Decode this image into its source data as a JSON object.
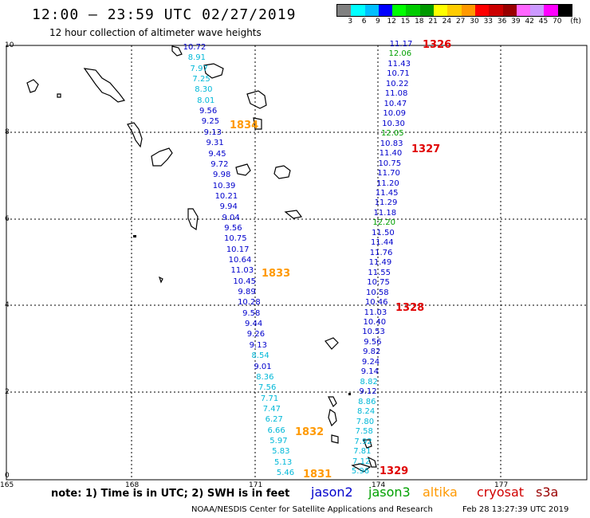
{
  "header": {
    "title": "12:00 – 23:59 UTC 02/27/2019",
    "subtitle": "12 hour collection of altimeter wave heights"
  },
  "legend_scale": {
    "colors": [
      "#808080",
      "#00ffff",
      "#00bfff",
      "#0000ff",
      "#00ff00",
      "#00cc00",
      "#009900",
      "#ffff00",
      "#ffcc00",
      "#ff9900",
      "#ff0000",
      "#cc0000",
      "#990000",
      "#ff66ff",
      "#cc99ff",
      "#ff00ff",
      "#000000"
    ],
    "labels": [
      "3",
      "6",
      "9",
      "12",
      "15",
      "18",
      "21",
      "24",
      "27",
      "30",
      "33",
      "36",
      "39",
      "42",
      "45",
      "70",
      "(ft)"
    ]
  },
  "axes": {
    "x_ticks": [
      "165",
      "168",
      "171",
      "174",
      "177"
    ],
    "y_ticks": [
      "10",
      "8",
      "6",
      "4",
      "2",
      "0"
    ]
  },
  "colors": {
    "jason2": "#0000cc",
    "jason3": "#00a000",
    "cyan": "#00b8d8",
    "time_orange": "#ff9900",
    "time_red": "#e00000",
    "altika": "#ff9900",
    "cryosat": "#d00000",
    "s3a": "#990000"
  },
  "track_a_values": [
    {
      "v": "10.72",
      "c": "jason2"
    },
    {
      "v": "8.91",
      "c": "cyan"
    },
    {
      "v": "7.97",
      "c": "cyan"
    },
    {
      "v": "7.25",
      "c": "cyan"
    },
    {
      "v": "8.30",
      "c": "cyan"
    },
    {
      "v": "8.01",
      "c": "cyan"
    },
    {
      "v": "9.56",
      "c": "jason2"
    },
    {
      "v": "9.25",
      "c": "jason2"
    },
    {
      "v": "9.13",
      "c": "jason2"
    },
    {
      "v": "9.31",
      "c": "jason2"
    },
    {
      "v": "9.45",
      "c": "jason2"
    },
    {
      "v": "9.72",
      "c": "jason2"
    },
    {
      "v": "9.98",
      "c": "jason2"
    },
    {
      "v": "10.39",
      "c": "jason2"
    },
    {
      "v": "10.21",
      "c": "jason2"
    },
    {
      "v": "9.94",
      "c": "jason2"
    },
    {
      "v": "9.04",
      "c": "jason2"
    },
    {
      "v": "9.56",
      "c": "jason2"
    },
    {
      "v": "10.75",
      "c": "jason2"
    },
    {
      "v": "10.17",
      "c": "jason2"
    },
    {
      "v": "10.64",
      "c": "jason2"
    },
    {
      "v": "11.03",
      "c": "jason2"
    },
    {
      "v": "10.45",
      "c": "jason2"
    },
    {
      "v": "9.89",
      "c": "jason2"
    },
    {
      "v": "10.28",
      "c": "jason2"
    },
    {
      "v": "9.58",
      "c": "jason2"
    },
    {
      "v": "9.44",
      "c": "jason2"
    },
    {
      "v": "9.26",
      "c": "jason2"
    },
    {
      "v": "9.13",
      "c": "jason2"
    },
    {
      "v": "8.54",
      "c": "cyan"
    },
    {
      "v": "9.01",
      "c": "jason2"
    },
    {
      "v": "8.36",
      "c": "cyan"
    },
    {
      "v": "7.56",
      "c": "cyan"
    },
    {
      "v": "7.71",
      "c": "cyan"
    },
    {
      "v": "7.47",
      "c": "cyan"
    },
    {
      "v": "6.27",
      "c": "cyan"
    },
    {
      "v": "6.66",
      "c": "cyan"
    },
    {
      "v": "5.97",
      "c": "cyan"
    },
    {
      "v": "5.83",
      "c": "cyan"
    },
    {
      "v": "5.13",
      "c": "cyan"
    },
    {
      "v": "5.46",
      "c": "cyan"
    }
  ],
  "track_b_values": [
    {
      "v": "11.17",
      "c": "jason2"
    },
    {
      "v": "12.06",
      "c": "jason3"
    },
    {
      "v": "11.43",
      "c": "jason2"
    },
    {
      "v": "10.71",
      "c": "jason2"
    },
    {
      "v": "10.22",
      "c": "jason2"
    },
    {
      "v": "11.08",
      "c": "jason2"
    },
    {
      "v": "10.47",
      "c": "jason2"
    },
    {
      "v": "10.09",
      "c": "jason2"
    },
    {
      "v": "10.30",
      "c": "jason2"
    },
    {
      "v": "12.05",
      "c": "jason3"
    },
    {
      "v": "10.83",
      "c": "jason2"
    },
    {
      "v": "11.40",
      "c": "jason2"
    },
    {
      "v": "10.75",
      "c": "jason2"
    },
    {
      "v": "11.70",
      "c": "jason2"
    },
    {
      "v": "11.20",
      "c": "jason2"
    },
    {
      "v": "11.45",
      "c": "jason2"
    },
    {
      "v": "11.29",
      "c": "jason2"
    },
    {
      "v": "11.18",
      "c": "jason2"
    },
    {
      "v": "12.20",
      "c": "jason3"
    },
    {
      "v": "11.50",
      "c": "jason2"
    },
    {
      "v": "11.44",
      "c": "jason2"
    },
    {
      "v": "11.76",
      "c": "jason2"
    },
    {
      "v": "11.49",
      "c": "jason2"
    },
    {
      "v": "11.55",
      "c": "jason2"
    },
    {
      "v": "10.75",
      "c": "jason2"
    },
    {
      "v": "10.58",
      "c": "jason2"
    },
    {
      "v": "10.46",
      "c": "jason2"
    },
    {
      "v": "11.03",
      "c": "jason2"
    },
    {
      "v": "10.40",
      "c": "jason2"
    },
    {
      "v": "10.53",
      "c": "jason2"
    },
    {
      "v": "9.56",
      "c": "jason2"
    },
    {
      "v": "9.82",
      "c": "jason2"
    },
    {
      "v": "9.24",
      "c": "jason2"
    },
    {
      "v": "9.14",
      "c": "jason2"
    },
    {
      "v": "8.82",
      "c": "cyan"
    },
    {
      "v": "9.12",
      "c": "jason2"
    },
    {
      "v": "8.86",
      "c": "cyan"
    },
    {
      "v": "8.24",
      "c": "cyan"
    },
    {
      "v": "7.80",
      "c": "cyan"
    },
    {
      "v": "7.58",
      "c": "cyan"
    },
    {
      "v": "7.92",
      "c": "cyan"
    },
    {
      "v": "7.81",
      "c": "cyan"
    },
    {
      "v": "7.12",
      "c": "cyan"
    },
    {
      "v": "5.96",
      "c": "cyan"
    }
  ],
  "time_labels": {
    "t1834": "1834",
    "t1833": "1833",
    "t1832": "1832",
    "t1831": "1831",
    "t1326": "1326",
    "t1327": "1327",
    "t1328": "1328",
    "t1329": "1329"
  },
  "footer": {
    "note": "note:  1) Time is in UTC;  2) SWH is in feet",
    "jason2": "jason2",
    "jason3": "jason3",
    "altika": "altika",
    "cryosat": "cryosat",
    "s3a": "s3a",
    "credit": "NOAA/NESDIS Center for Satellite Applications and Research",
    "timestamp": "Feb 28 13:27:39 UTC 2019"
  }
}
